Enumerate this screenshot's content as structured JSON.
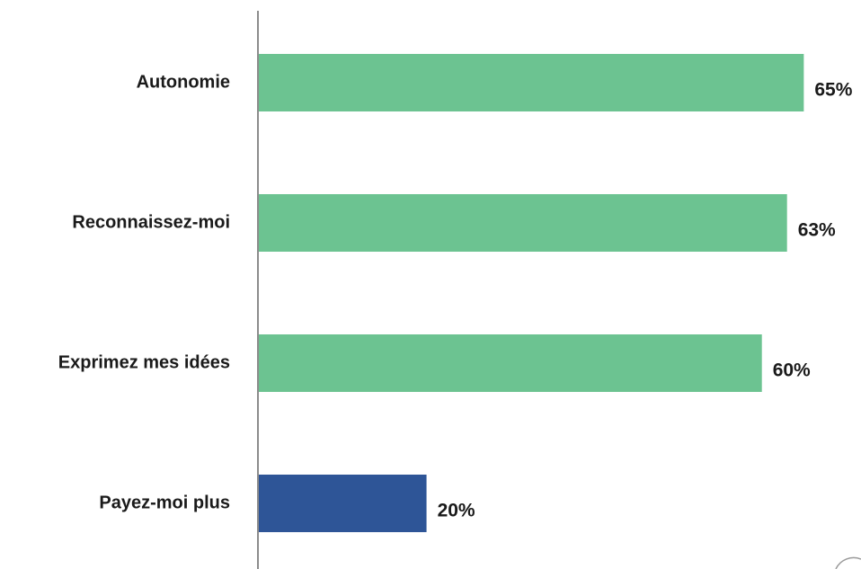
{
  "chart_data": {
    "type": "bar",
    "orientation": "horizontal",
    "categories": [
      "Autonomie",
      "Reconnaissez-moi",
      "Exprimez mes idées",
      "Payez-moi plus"
    ],
    "values": [
      65,
      63,
      60,
      20
    ],
    "value_labels": [
      "65%",
      "63%",
      "60%",
      "20%"
    ],
    "unit": "%",
    "bar_colors": [
      "#6cc391",
      "#6cc391",
      "#6cc391",
      "#2e5597"
    ],
    "axis_color": "#8c8c8c",
    "xlim": [
      0,
      70
    ],
    "grid": false,
    "legend": "none",
    "title": "",
    "xlabel": "",
    "ylabel": ""
  }
}
